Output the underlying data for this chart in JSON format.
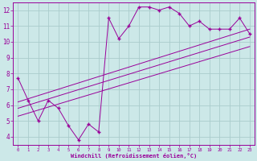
{
  "xlabel": "Windchill (Refroidissement éolien,°C)",
  "bg_color": "#cce8e8",
  "grid_color": "#aacccc",
  "line_color": "#990099",
  "xlim": [
    -0.5,
    23.5
  ],
  "ylim": [
    3.5,
    12.5
  ],
  "yticks": [
    4,
    5,
    6,
    7,
    8,
    9,
    10,
    11,
    12
  ],
  "xticks": [
    0,
    1,
    2,
    3,
    4,
    5,
    6,
    7,
    8,
    9,
    10,
    11,
    12,
    13,
    14,
    15,
    16,
    17,
    18,
    19,
    20,
    21,
    22,
    23
  ],
  "series1_x": [
    0,
    1,
    2,
    3,
    4,
    5,
    6,
    7,
    8,
    9,
    10,
    11,
    12,
    13,
    14,
    15,
    16,
    17,
    18,
    19,
    20,
    21,
    22,
    23
  ],
  "series1_y": [
    7.7,
    6.3,
    5.0,
    6.3,
    5.8,
    4.7,
    3.8,
    4.8,
    4.3,
    11.5,
    10.2,
    11.0,
    12.2,
    12.2,
    12.0,
    12.2,
    11.8,
    11.0,
    11.3,
    10.8,
    10.8,
    10.8,
    11.5,
    10.5
  ],
  "series2_x": [
    0,
    23
  ],
  "series2_y": [
    6.2,
    10.8
  ],
  "series3_x": [
    0,
    23
  ],
  "series3_y": [
    5.8,
    10.3
  ],
  "series4_x": [
    0,
    23
  ],
  "series4_y": [
    5.3,
    9.7
  ]
}
